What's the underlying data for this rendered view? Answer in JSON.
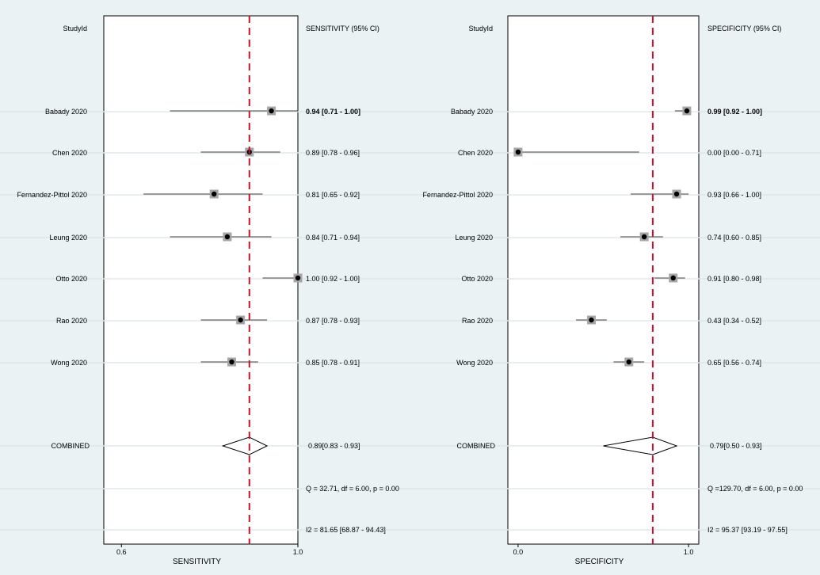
{
  "chart_data": [
    {
      "type": "forest",
      "id_column_header": "StudyId",
      "estimate_column_header": "SENSITIVITY (95% CI)",
      "xlabel": "SENSITIVITY",
      "xlim": [
        0.56,
        1.0
      ],
      "xticks": [
        "0.6",
        "1.0"
      ],
      "xtick_values": [
        0.6,
        1.0
      ],
      "reference_line": 0.89,
      "studies": [
        {
          "label": "Babady 2020",
          "estimate": 0.94,
          "lower": 0.71,
          "upper": 1.0,
          "text": "0.94 [0.71 - 1.00]",
          "bold": true
        },
        {
          "label": "Chen 2020",
          "estimate": 0.89,
          "lower": 0.78,
          "upper": 0.96,
          "text": "0.89 [0.78 - 0.96]",
          "bold": false
        },
        {
          "label": "Fernandez-Pittol 2020",
          "estimate": 0.81,
          "lower": 0.65,
          "upper": 0.92,
          "text": "0.81 [0.65 - 0.92]",
          "bold": false
        },
        {
          "label": "Leung 2020",
          "estimate": 0.84,
          "lower": 0.71,
          "upper": 0.94,
          "text": "0.84 [0.71 - 0.94]",
          "bold": false
        },
        {
          "label": "Otto 2020",
          "estimate": 1.0,
          "lower": 0.92,
          "upper": 1.0,
          "text": "1.00 [0.92 - 1.00]",
          "bold": false
        },
        {
          "label": "Rao 2020",
          "estimate": 0.87,
          "lower": 0.78,
          "upper": 0.93,
          "text": "0.87 [0.78 - 0.93]",
          "bold": false
        },
        {
          "label": "Wong 2020",
          "estimate": 0.85,
          "lower": 0.78,
          "upper": 0.91,
          "text": "0.85 [0.78 - 0.91]",
          "bold": false
        }
      ],
      "combined": {
        "label": "COMBINED",
        "estimate": 0.89,
        "lower": 0.83,
        "upper": 0.93,
        "text": "0.89[0.83 - 0.93]"
      },
      "heterogeneity_q": "Q = 32.71, df = 6.00, p =  0.00",
      "heterogeneity_i2": "I2 = 81.65 [68.87 - 94.43]"
    },
    {
      "type": "forest",
      "id_column_header": "StudyId",
      "estimate_column_header": "SPECIFICITY (95% CI)",
      "xlabel": "SPECIFICITY",
      "xlim": [
        -0.06,
        1.06
      ],
      "xticks": [
        "0.0",
        "1.0"
      ],
      "xtick_values": [
        0.0,
        1.0
      ],
      "reference_line": 0.79,
      "studies": [
        {
          "label": "Babady 2020",
          "estimate": 0.99,
          "lower": 0.92,
          "upper": 1.0,
          "text": "0.99 [0.92 - 1.00]",
          "bold": true
        },
        {
          "label": "Chen 2020",
          "estimate": 0.0,
          "lower": 0.0,
          "upper": 0.71,
          "text": "0.00 [0.00 - 0.71]",
          "bold": false
        },
        {
          "label": "Fernandez-Pittol 2020",
          "estimate": 0.93,
          "lower": 0.66,
          "upper": 1.0,
          "text": "0.93 [0.66 - 1.00]",
          "bold": false
        },
        {
          "label": "Leung 2020",
          "estimate": 0.74,
          "lower": 0.6,
          "upper": 0.85,
          "text": "0.74 [0.60 - 0.85]",
          "bold": false
        },
        {
          "label": "Otto 2020",
          "estimate": 0.91,
          "lower": 0.8,
          "upper": 0.98,
          "text": "0.91 [0.80 - 0.98]",
          "bold": false
        },
        {
          "label": "Rao 2020",
          "estimate": 0.43,
          "lower": 0.34,
          "upper": 0.52,
          "text": "0.43 [0.34 - 0.52]",
          "bold": false
        },
        {
          "label": "Wong 2020",
          "estimate": 0.65,
          "lower": 0.56,
          "upper": 0.74,
          "text": "0.65 [0.56 - 0.74]",
          "bold": false
        }
      ],
      "combined": {
        "label": "COMBINED",
        "estimate": 0.79,
        "lower": 0.5,
        "upper": 0.93,
        "text": "0.79[0.50 - 0.93]"
      },
      "heterogeneity_q": "Q =129.70, df = 6.00, p =  0.00",
      "heterogeneity_i2": "I2 = 95.37 [93.19 - 97.55]"
    }
  ],
  "colors": {
    "background": "#eaf2f3",
    "plot_area": "#ffffff",
    "reference_line": "#c8102e",
    "row_gridline": "#dde8ea",
    "marker_box": "#a6a6a6",
    "marker_point": "#000000"
  }
}
